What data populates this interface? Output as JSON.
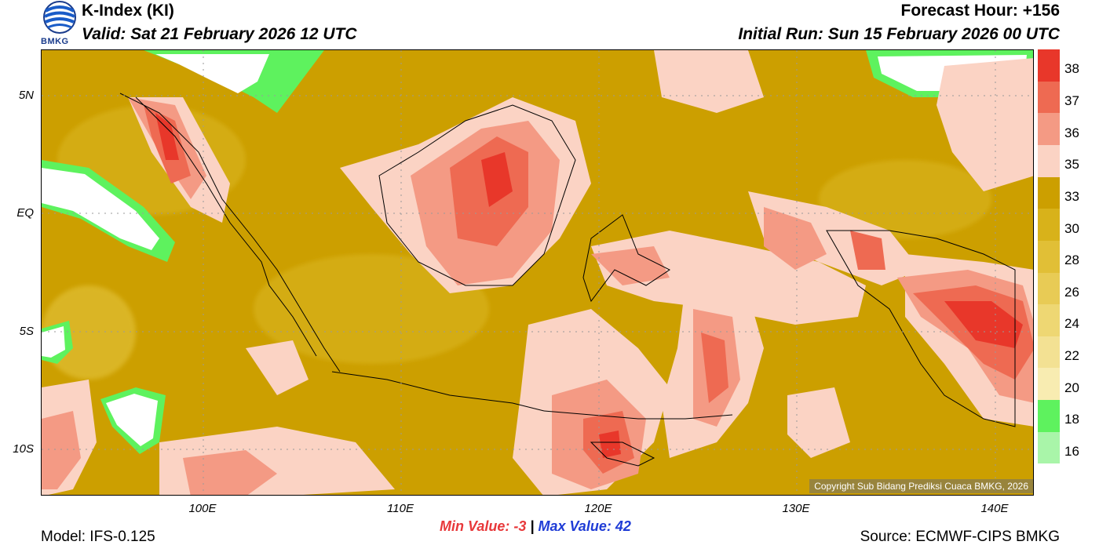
{
  "header": {
    "title": "K-Index (KI)",
    "valid": "Valid: Sat 21 February 2026 12 UTC",
    "forecast_hour": "Forecast Hour: +156",
    "initial_run": "Initial Run: Sun 15 February 2026 00 UTC",
    "logo_text": "BMKG"
  },
  "map": {
    "lat_labels": [
      "5N",
      "EQ",
      "5S",
      "10S"
    ],
    "lon_labels": [
      "100E",
      "110E",
      "120E",
      "130E",
      "140E"
    ],
    "copyright": "Copyright Sub Bidang Prediksi Cuaca BMKG, 2026"
  },
  "stats": {
    "min_label": "Min Value:",
    "min_value": "-3",
    "separator": "|",
    "max_label": "Max Value:",
    "max_value": "42"
  },
  "footer": {
    "model": "Model: IFS-0.125",
    "source": "Source: ECMWF-CIPS BMKG"
  },
  "colorbar": {
    "labels": [
      "38",
      "37",
      "36",
      "35",
      "33",
      "30",
      "28",
      "26",
      "24",
      "22",
      "20",
      "18",
      "16"
    ],
    "colors": [
      "#e8372a",
      "#ee6a52",
      "#f49a84",
      "#fbd3c4",
      "#cc9f00",
      "#d8b21a",
      "#e1bf36",
      "#e8cb55",
      "#eed773",
      "#f3e193",
      "#f8ecb1",
      "#5ef25e",
      "#a9f5a9",
      "#ffffff"
    ]
  },
  "palette": {
    "background_field": "#cc9f00",
    "warm_field": "#d8b21a",
    "light_pink": "#fbd3c4",
    "pink": "#f49a84",
    "red": "#ee6a52",
    "dark_red": "#e8372a",
    "green": "#5ef25e",
    "white": "#ffffff"
  }
}
